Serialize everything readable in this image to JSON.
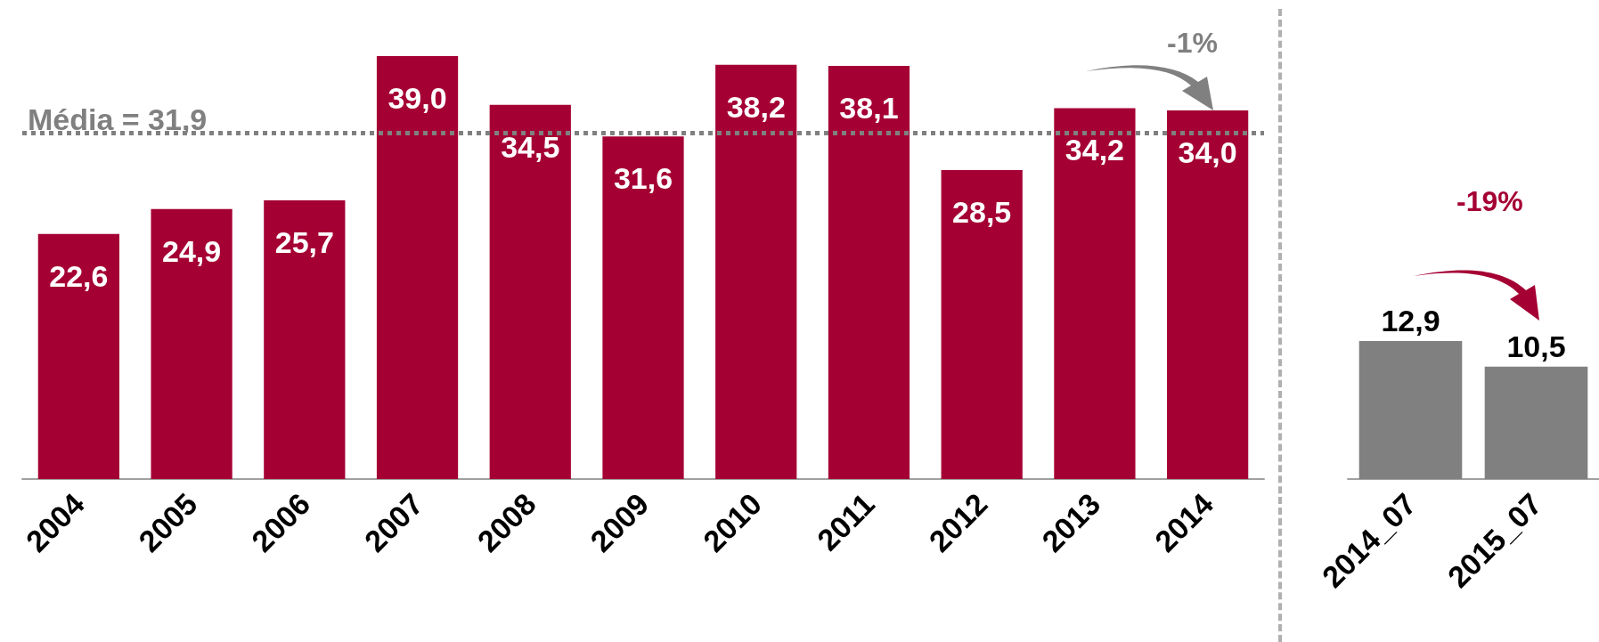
{
  "chart_data": [
    {
      "type": "bar",
      "categories": [
        "2004",
        "2005",
        "2006",
        "2007",
        "2008",
        "2009",
        "2010",
        "2011",
        "2012",
        "2013",
        "2014"
      ],
      "series": [
        {
          "color": "#a50034",
          "values": [
            22.6,
            24.9,
            25.7,
            39.0,
            34.5,
            31.6,
            38.2,
            38.1,
            28.5,
            34.2,
            34.0
          ],
          "value_labels": [
            "22,6",
            "24,9",
            "25,7",
            "39,0",
            "34,5",
            "31,6",
            "38,2",
            "38,1",
            "28,5",
            "34,2",
            "34,0"
          ]
        }
      ],
      "tick_labels": "x",
      "ref_lines": [
        {
          "axis": "y",
          "value": 31.9,
          "label": "Média = 31,9",
          "color": "#808080",
          "line_style": "dotted"
        }
      ],
      "annotations": [
        "-1%"
      ]
    },
    {
      "type": "bar",
      "categories": [
        "2014_07",
        "2015_07"
      ],
      "series": [
        {
          "color": "#808080",
          "values": [
            12.9,
            10.5
          ],
          "value_labels": [
            "12,9",
            "10,5"
          ]
        }
      ],
      "tick_labels": "x",
      "annotations": [
        "-19%"
      ]
    }
  ]
}
